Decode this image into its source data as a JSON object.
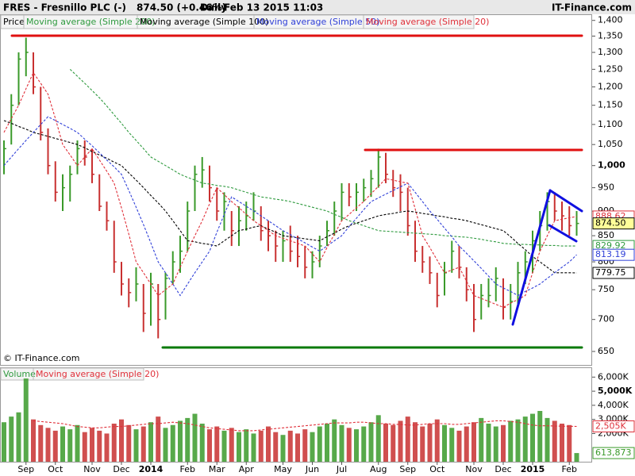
{
  "header": {
    "symbol": "FRES - Fresnillo PLC (-)",
    "quote": "874.50 (+0.46%)",
    "period": "Daily",
    "timestamp": "Feb 13 2015 11:03",
    "site": "IT-Finance.com"
  },
  "copyright": "© IT-Finance.com",
  "chart_data": [
    {
      "type": "ohlc",
      "legend_label": "Price",
      "log_scale": true,
      "up_color": "#3a9a2a",
      "down_color": "#c83030",
      "categories": [
        null,
        null,
        null,
        "Sep",
        null,
        null,
        null,
        "Oct",
        null,
        null,
        null,
        null,
        "Nov",
        null,
        null,
        null,
        "Dec",
        null,
        null,
        null,
        "2014",
        null,
        null,
        null,
        null,
        "Feb",
        null,
        null,
        null,
        "Mar",
        null,
        null,
        null,
        "Apr",
        null,
        null,
        null,
        null,
        "May",
        null,
        null,
        null,
        "Jun",
        null,
        null,
        null,
        "Jul",
        null,
        null,
        null,
        null,
        "Aug",
        null,
        null,
        null,
        "Sep",
        null,
        null,
        null,
        "Oct",
        null,
        null,
        null,
        null,
        "Nov",
        null,
        null,
        null,
        "Dec",
        null,
        null,
        null,
        "2015",
        null,
        null,
        null,
        null,
        "Feb",
        null
      ],
      "high": [
        1060,
        1180,
        1300,
        1345,
        1300,
        1200,
        1090,
        1010,
        980,
        1000,
        1060,
        1060,
        1040,
        980,
        920,
        880,
        800,
        770,
        790,
        760,
        780,
        760,
        780,
        820,
        850,
        920,
        1000,
        1020,
        1000,
        950,
        940,
        900,
        910,
        920,
        940,
        910,
        880,
        860,
        860,
        870,
        850,
        830,
        820,
        850,
        880,
        920,
        960,
        960,
        960,
        970,
        990,
        1040,
        1030,
        990,
        980,
        950,
        880,
        830,
        810,
        780,
        800,
        840,
        830,
        790,
        760,
        760,
        770,
        790,
        770,
        760,
        800,
        820,
        860,
        900,
        940,
        940,
        920,
        910,
        900
      ],
      "low": [
        980,
        1050,
        1150,
        1230,
        1180,
        1060,
        980,
        920,
        900,
        920,
        980,
        1000,
        960,
        900,
        860,
        780,
        740,
        720,
        730,
        680,
        690,
        670,
        700,
        760,
        780,
        820,
        900,
        950,
        920,
        880,
        860,
        830,
        830,
        860,
        880,
        840,
        820,
        800,
        800,
        800,
        790,
        770,
        770,
        790,
        830,
        850,
        880,
        910,
        900,
        920,
        930,
        950,
        960,
        930,
        900,
        850,
        800,
        780,
        760,
        720,
        740,
        780,
        770,
        730,
        680,
        700,
        720,
        730,
        700,
        700,
        720,
        760,
        780,
        820,
        860,
        880,
        860,
        850,
        850
      ],
      "close": [
        1040,
        1150,
        1280,
        1300,
        1200,
        1080,
        1000,
        940,
        950,
        980,
        1040,
        1020,
        980,
        910,
        880,
        800,
        760,
        745,
        760,
        710,
        760,
        700,
        770,
        800,
        820,
        900,
        980,
        990,
        950,
        900,
        920,
        860,
        880,
        890,
        900,
        860,
        850,
        830,
        840,
        820,
        810,
        790,
        800,
        830,
        860,
        900,
        940,
        930,
        940,
        950,
        970,
        1020,
        980,
        950,
        940,
        870,
        820,
        800,
        780,
        740,
        780,
        820,
        790,
        750,
        700,
        740,
        740,
        770,
        720,
        730,
        780,
        800,
        840,
        870,
        920,
        900,
        890,
        870,
        874.5
      ],
      "close_label": "874.50",
      "ylim": [
        630,
        1420
      ],
      "yticks": [
        {
          "value": 1400,
          "label": "1,400"
        },
        {
          "value": 1350,
          "label": "1,350"
        },
        {
          "value": 1300,
          "label": "1,300"
        },
        {
          "value": 1250,
          "label": "1,250"
        },
        {
          "value": 1200,
          "label": "1,200"
        },
        {
          "value": 1150,
          "label": "1,150"
        },
        {
          "value": 1100,
          "label": "1,100"
        },
        {
          "value": 1050,
          "label": "1,050"
        },
        {
          "value": 1000,
          "label": "1,000"
        },
        950,
        900,
        850,
        800,
        750,
        700,
        650
      ],
      "series": [
        {
          "name": "Moving average (Simple 200)",
          "color": "#2e9a3e",
          "values": [
            null,
            null,
            null,
            null,
            null,
            null,
            null,
            null,
            null,
            1250,
            1230,
            1210,
            1190,
            1170,
            1148,
            1125,
            1103,
            1080,
            1060,
            1040,
            1020,
            1010,
            1000,
            990,
            980,
            973,
            967,
            960,
            958,
            955,
            953,
            950,
            945,
            940,
            935,
            930,
            928,
            925,
            923,
            920,
            916,
            912,
            908,
            904,
            900,
            893,
            887,
            880,
            875,
            870,
            865,
            860,
            859,
            858,
            857,
            856,
            855,
            854,
            853,
            852,
            850,
            849,
            848,
            847,
            845,
            843,
            840,
            838,
            835,
            834,
            833,
            833,
            832,
            832,
            831,
            831,
            830,
            830,
            829.92
          ]
        },
        {
          "name": "Moving average (Simple 100)",
          "color": "#000000",
          "values": [
            1110,
            1103,
            1095,
            1088,
            1080,
            1075,
            1070,
            1065,
            1060,
            1055,
            1050,
            1042,
            1033,
            1025,
            1017,
            1008,
            1000,
            983,
            967,
            950,
            933,
            917,
            900,
            880,
            860,
            840,
            838,
            835,
            833,
            830,
            840,
            850,
            860,
            863,
            867,
            870,
            863,
            857,
            850,
            848,
            846,
            844,
            842,
            840,
            848,
            855,
            863,
            870,
            875,
            880,
            885,
            890,
            893,
            895,
            898,
            900,
            898,
            895,
            893,
            890,
            888,
            885,
            883,
            880,
            876,
            872,
            868,
            864,
            860,
            848,
            835,
            823,
            810,
            800,
            790,
            780,
            780,
            780,
            779.75
          ]
        },
        {
          "name": "Moving average (Simple 50)",
          "color": "#3040d8",
          "values": [
            1000,
            1020,
            1040,
            1060,
            1080,
            1100,
            1120,
            1110,
            1100,
            1090,
            1080,
            1063,
            1047,
            1030,
            1013,
            997,
            980,
            944,
            908,
            872,
            836,
            800,
            780,
            760,
            740,
            760,
            780,
            800,
            820,
            857,
            893,
            930,
            920,
            910,
            900,
            890,
            880,
            870,
            860,
            852,
            844,
            836,
            828,
            820,
            830,
            840,
            850,
            868,
            885,
            903,
            920,
            928,
            936,
            944,
            952,
            960,
            940,
            920,
            900,
            883,
            865,
            848,
            830,
            816,
            802,
            788,
            774,
            760,
            753,
            747,
            740,
            747,
            753,
            760,
            770,
            780,
            790,
            800,
            813.19
          ]
        },
        {
          "name": "Moving average (Simple 20)",
          "color": "#e0303a",
          "values": [
            1080,
            1115,
            1150,
            1195,
            1240,
            1210,
            1180,
            1115,
            1050,
            1025,
            1000,
            1020,
            1040,
            1013,
            987,
            960,
            907,
            853,
            800,
            780,
            760,
            740,
            750,
            760,
            790,
            820,
            850,
            880,
            915,
            950,
            935,
            920,
            907,
            893,
            880,
            870,
            860,
            850,
            845,
            840,
            835,
            830,
            815,
            800,
            827,
            853,
            880,
            893,
            907,
            920,
            937,
            953,
            970,
            967,
            963,
            960,
            905,
            850,
            827,
            803,
            780,
            785,
            790,
            765,
            740,
            735,
            730,
            725,
            720,
            727,
            733,
            740,
            780,
            820,
            850,
            880,
            883,
            886,
            888.62
          ]
        }
      ]
    },
    {
      "type": "bar",
      "legend_label": "Volume",
      "color": "#3a9a2a",
      "values": [
        2800,
        3200,
        3500,
        5900,
        3000,
        2600,
        2400,
        2200,
        2500,
        2300,
        2600,
        2100,
        2400,
        2200,
        2000,
        2700,
        3000,
        2600,
        2300,
        2500,
        2800,
        3200,
        2400,
        2600,
        2900,
        3100,
        3400,
        2700,
        2300,
        2500,
        2200,
        2400,
        2100,
        2300,
        2000,
        2200,
        2500,
        2100,
        1900,
        2200,
        2000,
        2300,
        2100,
        2500,
        2700,
        3000,
        2600,
        2400,
        2300,
        2500,
        2800,
        3300,
        2700,
        2600,
        2900,
        3200,
        2800,
        2500,
        2700,
        3000,
        2600,
        2400,
        2200,
        2500,
        2800,
        3100,
        2700,
        2500,
        2600,
        2900,
        3000,
        3200,
        3400,
        3600,
        3100,
        2900,
        2700,
        2600,
        613.873
      ],
      "last_value_label": "613,873",
      "ylim": [
        0,
        6300
      ],
      "yticks": [
        {
          "value": 6000,
          "label": "6,000K"
        },
        {
          "value": 5000,
          "label": "5,000K"
        },
        {
          "value": 4000,
          "label": "4,000K"
        },
        {
          "value": 3000,
          "label": "3,000K"
        },
        {
          "value": 2000,
          "label": "2,000K"
        }
      ],
      "series": [
        {
          "name": "Moving average (Simple 20)",
          "color": "#e0303a",
          "values": [
            null,
            null,
            null,
            null,
            2900,
            2850,
            2800,
            2750,
            2700,
            2600,
            2500,
            2450,
            2400,
            2400,
            2450,
            2500,
            2500,
            2550,
            2600,
            2650,
            2700,
            2700,
            2750,
            2800,
            2750,
            2700,
            2600,
            2500,
            2400,
            2350,
            2300,
            2250,
            2200,
            2200,
            2200,
            2250,
            2300,
            2350,
            2400,
            2450,
            2500,
            2550,
            2600,
            2650,
            2700,
            2750,
            2750,
            2750,
            2800,
            2800,
            2750,
            2700,
            2700,
            2650,
            2650,
            2600,
            2600,
            2650,
            2700,
            2700,
            2700,
            2650,
            2650,
            2700,
            2750,
            2800,
            2850,
            2900,
            2900,
            2850,
            2800,
            2700,
            2600,
            2550,
            2550,
            2530,
            2520,
            2510,
            2505
          ],
          "last_value_label": "2,505K"
        }
      ]
    }
  ]
}
